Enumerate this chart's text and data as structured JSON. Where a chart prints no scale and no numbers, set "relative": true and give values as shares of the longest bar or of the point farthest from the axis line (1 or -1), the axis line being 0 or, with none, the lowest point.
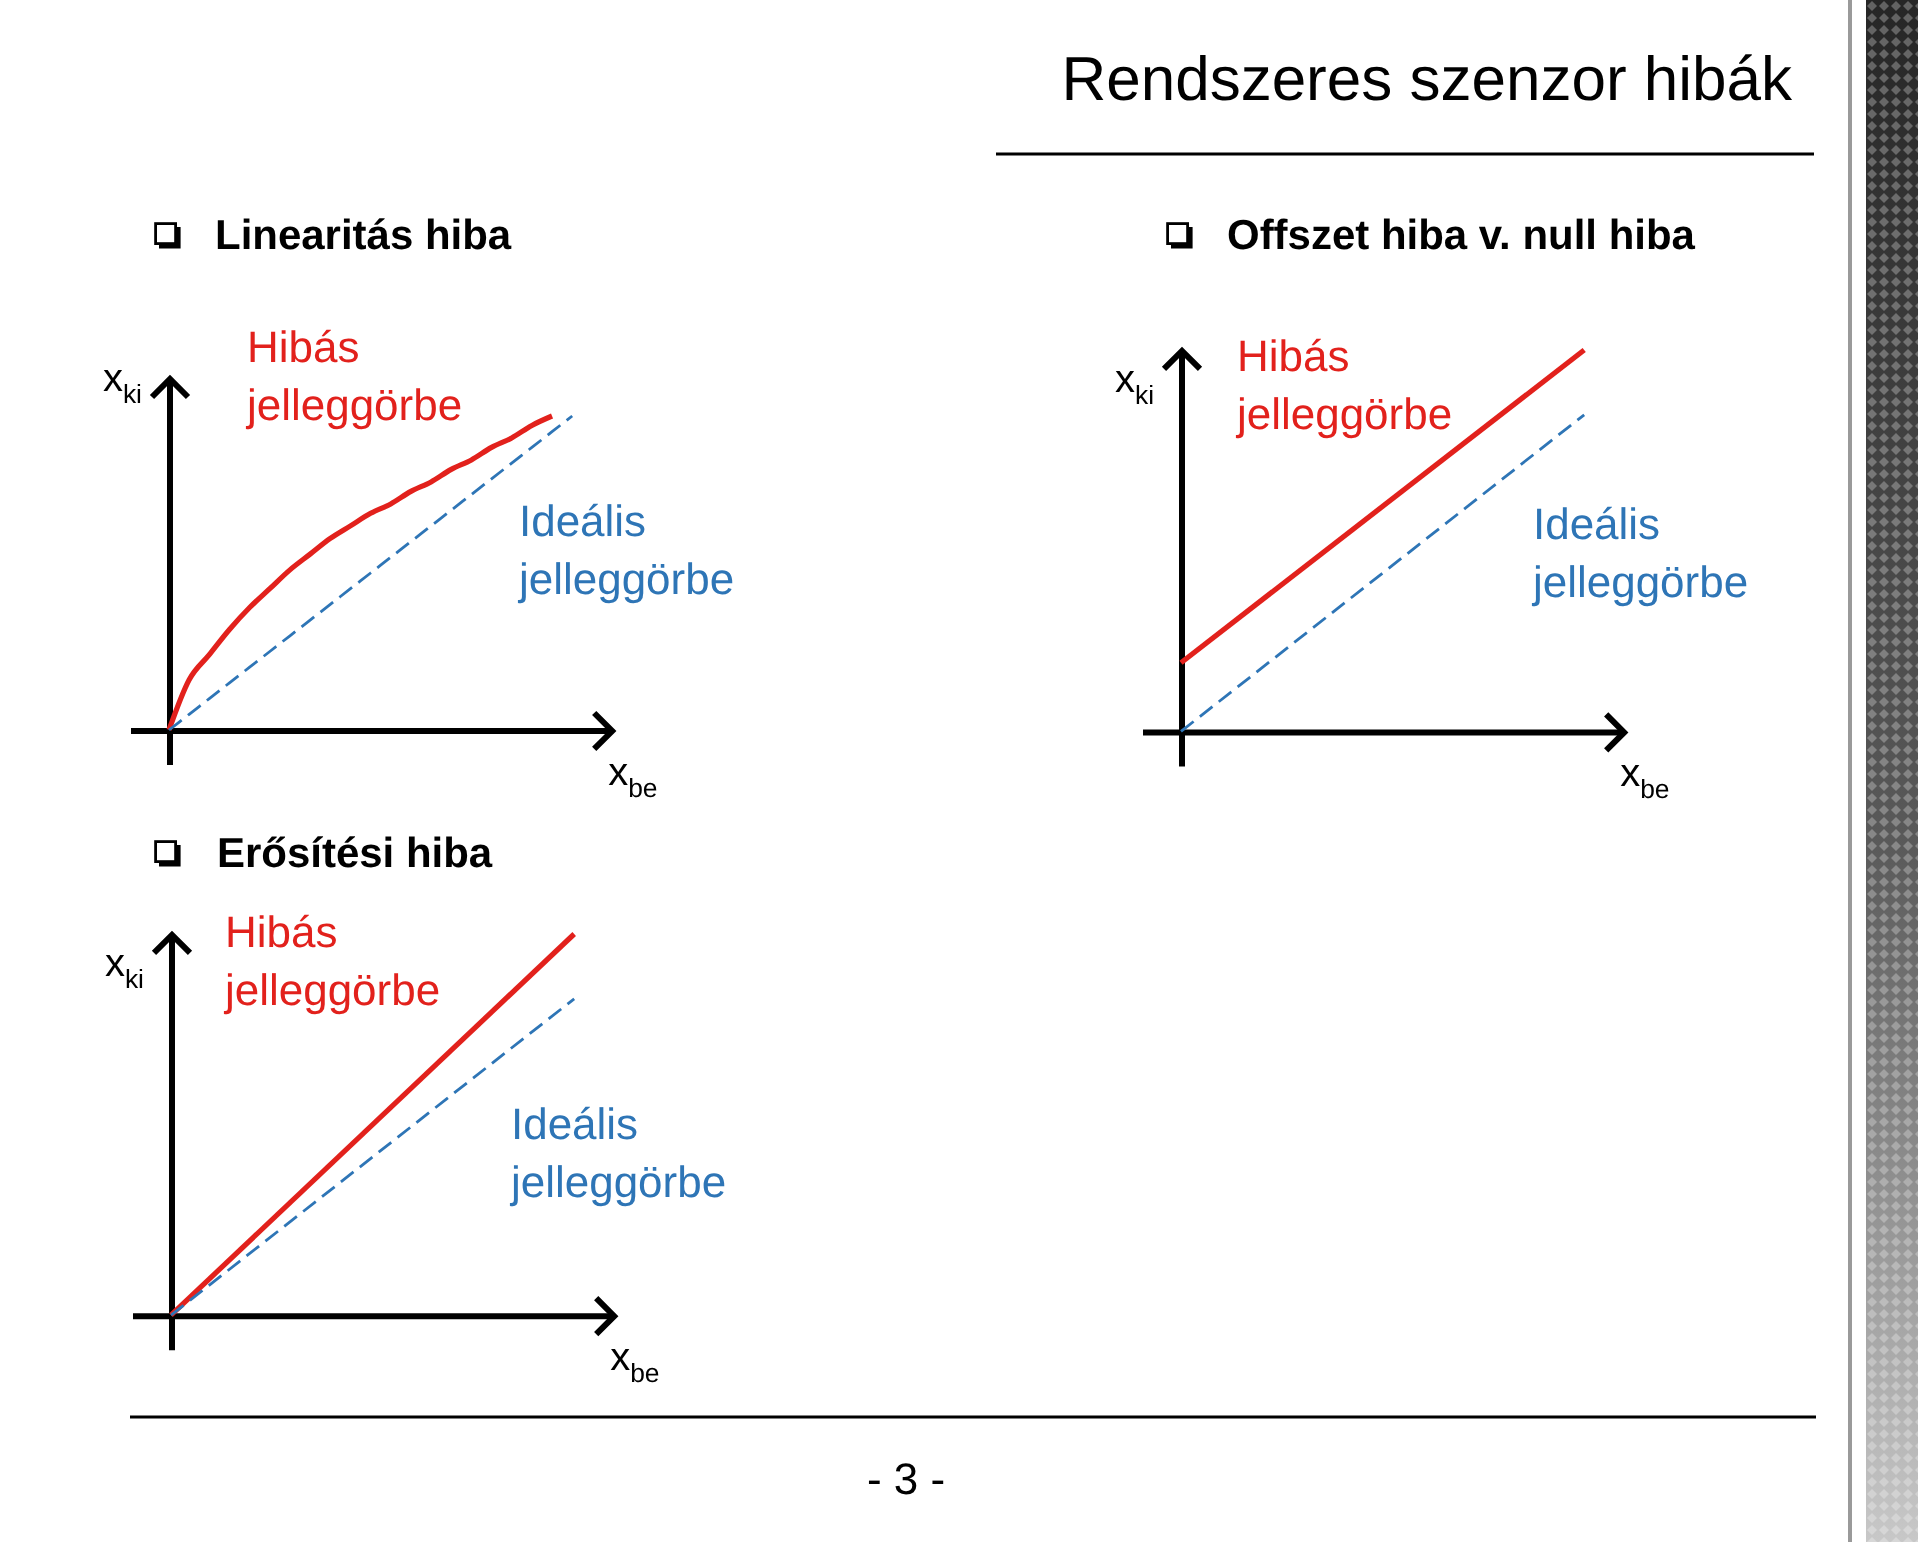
{
  "chart_data": [
    {
      "type": "other",
      "title": "Rendszeres szenzor hibák",
      "annotations": [
        "- 3 -"
      ]
    },
    {
      "type": "line",
      "title": "Linearitás hiba",
      "xlabel": "x$_{be}$",
      "ylabel": "x$_{ki}$",
      "relative": true,
      "categories": [
        null,
        null,
        null,
        null,
        null,
        null,
        null,
        null,
        null,
        null,
        null,
        null,
        null,
        null,
        null,
        null,
        null,
        null,
        null,
        null,
        null
      ],
      "series": [
        {
          "name": "Hibás jelleggörbe",
          "color": "#e2211c",
          "line_style": "solid",
          "values": [
            0,
            0.16,
            0.24,
            0.32,
            0.39,
            0.45,
            0.51,
            0.56,
            0.61,
            0.65,
            0.69,
            0.72,
            0.76,
            0.79,
            0.83,
            0.86,
            0.9,
            0.93,
            0.97,
            1,
            null
          ]
        },
        {
          "name": "Ideális jelleggörbe",
          "color": "#2e75b6",
          "line_style": "dashed",
          "values": [
            0,
            0.05,
            0.1,
            0.15,
            0.2,
            0.25,
            0.3,
            0.35,
            0.4,
            0.45,
            0.5,
            0.55,
            0.6,
            0.65,
            0.7,
            0.75,
            0.8,
            0.85,
            0.9,
            0.95,
            1
          ]
        }
      ]
    },
    {
      "type": "line",
      "title": "Offszet hiba v. null hiba",
      "xlabel": "x$_{be}$",
      "ylabel": "x$_{ki}$",
      "relative": true,
      "categories": [
        null,
        null
      ],
      "series": [
        {
          "name": "Hibás jelleggörbe",
          "color": "#e2211c",
          "line_style": "solid",
          "values": [
            0.18,
            1
          ]
        },
        {
          "name": "Ideális jelleggörbe",
          "color": "#2e75b6",
          "line_style": "dashed",
          "values": [
            0,
            0.83
          ]
        }
      ]
    },
    {
      "type": "line",
      "title": "Erősítési hiba",
      "xlabel": "x$_{be}$",
      "ylabel": "x$_{ki}$",
      "relative": true,
      "categories": [
        null,
        null
      ],
      "series": [
        {
          "name": "Hibás jelleggörbe",
          "color": "#e2211c",
          "line_style": "solid",
          "values": [
            0,
            1
          ]
        },
        {
          "name": "Ideális jelleggörbe",
          "color": "#2e75b6",
          "line_style": "dashed",
          "values": [
            0,
            0.83
          ]
        }
      ]
    }
  ]
}
